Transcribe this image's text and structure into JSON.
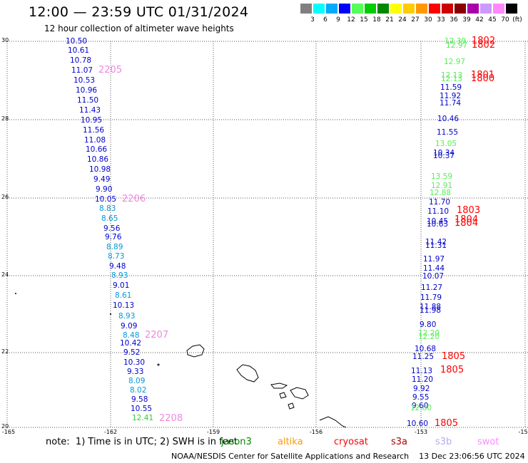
{
  "title": "12:00 — 23:59 UTC 01/31/2024",
  "subtitle": "12 hour collection of altimeter wave heights",
  "scale": {
    "colors": [
      "#808080",
      "#00ffff",
      "#00aaff",
      "#0000ff",
      "#55ff55",
      "#00cc00",
      "#008800",
      "#ffff00",
      "#ffcc00",
      "#ff9900",
      "#ff0000",
      "#cc0000",
      "#880000",
      "#aa00aa",
      "#cc99ff",
      "#ff88ff",
      "#000000"
    ],
    "labels": [
      "3",
      "6",
      "9",
      "12",
      "15",
      "18",
      "21",
      "24",
      "27",
      "30",
      "33",
      "36",
      "39",
      "42",
      "45",
      "70"
    ],
    "unit": "(ft)"
  },
  "lat_labels": [
    "30",
    "28",
    "26",
    "24",
    "22",
    "20"
  ],
  "lon_labels": [
    "-165",
    "-162",
    "-159",
    "-156",
    "-153",
    "-15"
  ],
  "wave_values": [
    {
      "t": "10.50",
      "c": "#0000cc"
    },
    {
      "t": "10.61",
      "c": "#0000cc"
    },
    {
      "t": "10.78",
      "c": "#0000cc"
    },
    {
      "t": "11.07",
      "c": "#0000cc"
    },
    {
      "t": "10.53",
      "c": "#0000cc"
    },
    {
      "t": "10.96",
      "c": "#0000cc"
    },
    {
      "t": "11.50",
      "c": "#0000cc"
    },
    {
      "t": "11.43",
      "c": "#0000cc"
    },
    {
      "t": "10.95",
      "c": "#0000cc"
    },
    {
      "t": "11.56",
      "c": "#0000cc"
    },
    {
      "t": "11.08",
      "c": "#0000cc"
    },
    {
      "t": "10.66",
      "c": "#0000cc"
    },
    {
      "t": "10.86",
      "c": "#0000cc"
    },
    {
      "t": "10.98",
      "c": "#0000cc"
    },
    {
      "t": "9.49",
      "c": "#0000cc"
    },
    {
      "t": "9.90",
      "c": "#0000cc"
    },
    {
      "t": "10.05",
      "c": "#0000cc"
    },
    {
      "t": "8.83",
      "c": "#0099dd"
    },
    {
      "t": "8.65",
      "c": "#0099dd"
    },
    {
      "t": "9.56",
      "c": "#0000cc"
    },
    {
      "t": "9.76",
      "c": "#0000cc"
    },
    {
      "t": "8.89",
      "c": "#0099dd"
    },
    {
      "t": "8.73",
      "c": "#0099dd"
    },
    {
      "t": "9.48",
      "c": "#0000cc"
    },
    {
      "t": "8.93",
      "c": "#0099dd"
    },
    {
      "t": "9.01",
      "c": "#0000cc"
    },
    {
      "t": "8.61",
      "c": "#0099dd"
    },
    {
      "t": "10.13",
      "c": "#0000cc"
    },
    {
      "t": "8.93",
      "c": "#0099dd"
    },
    {
      "t": "9.09",
      "c": "#0000cc"
    },
    {
      "t": "8.48",
      "c": "#0099dd"
    },
    {
      "t": "10.42",
      "c": "#0000cc"
    },
    {
      "t": "9.52",
      "c": "#0000cc"
    },
    {
      "t": "10.30",
      "c": "#0000cc"
    },
    {
      "t": "9.33",
      "c": "#0000cc"
    },
    {
      "t": "8.09",
      "c": "#0099dd"
    },
    {
      "t": "8.02",
      "c": "#0099dd"
    },
    {
      "t": "9.58",
      "c": "#0000cc"
    },
    {
      "t": "10.55",
      "c": "#0000cc"
    },
    {
      "t": "12.41",
      "c": "#33cc33"
    },
    {
      "t": "12.39",
      "c": "#55ee55"
    },
    {
      "t": "12.97",
      "c": "#55ee55"
    },
    {
      "t": "12.97",
      "c": "#55ee55"
    },
    {
      "t": "12.13",
      "c": "#55ee55"
    },
    {
      "t": "12.13",
      "c": "#55ee55"
    },
    {
      "t": "11.59",
      "c": "#0000cc"
    },
    {
      "t": "11.92",
      "c": "#0000cc"
    },
    {
      "t": "11.74",
      "c": "#0000cc"
    },
    {
      "t": "10.46",
      "c": "#0000cc"
    },
    {
      "t": "11.55",
      "c": "#0000cc"
    },
    {
      "t": "13.05",
      "c": "#55ee55"
    },
    {
      "t": "10.34",
      "c": "#0000cc"
    },
    {
      "t": "10.37",
      "c": "#0000cc"
    },
    {
      "t": "13.59",
      "c": "#55ee55"
    },
    {
      "t": "12.91",
      "c": "#55ee55"
    },
    {
      "t": "12.88",
      "c": "#55ee55"
    },
    {
      "t": "11.70",
      "c": "#0000cc"
    },
    {
      "t": "11.10",
      "c": "#0000cc"
    },
    {
      "t": "10.45",
      "c": "#0000cc"
    },
    {
      "t": "10.63",
      "c": "#0000cc"
    },
    {
      "t": "11.42",
      "c": "#0000cc"
    },
    {
      "t": "11.31",
      "c": "#0000cc"
    },
    {
      "t": "11.97",
      "c": "#0000cc"
    },
    {
      "t": "11.44",
      "c": "#0000cc"
    },
    {
      "t": "10.07",
      "c": "#0000cc"
    },
    {
      "t": "11.27",
      "c": "#0000cc"
    },
    {
      "t": "11.79",
      "c": "#0000cc"
    },
    {
      "t": "11.88",
      "c": "#0000cc"
    },
    {
      "t": "11.98",
      "c": "#0000cc"
    },
    {
      "t": "9.80",
      "c": "#0000cc"
    },
    {
      "t": "12.20",
      "c": "#55ee55"
    },
    {
      "t": "12.20",
      "c": "#55ee55"
    },
    {
      "t": "10.68",
      "c": "#0000cc"
    },
    {
      "t": "11.25",
      "c": "#0000cc"
    },
    {
      "t": "11.13",
      "c": "#0000cc"
    },
    {
      "t": "11.20",
      "c": "#0000cc"
    },
    {
      "t": "9.92",
      "c": "#0000cc"
    },
    {
      "t": "9.55",
      "c": "#0000cc"
    },
    {
      "t": "9.60",
      "c": "#0000cc"
    },
    {
      "t": "12.80",
      "c": "#55ee55"
    },
    {
      "t": "10.60",
      "c": "#0000cc"
    }
  ],
  "time_tags": [
    {
      "t": "2205",
      "c": "#ee88dd"
    },
    {
      "t": "2206",
      "c": "#ee88dd"
    },
    {
      "t": "2207",
      "c": "#ee88dd"
    },
    {
      "t": "2208",
      "c": "#ee88dd"
    },
    {
      "t": "1802",
      "c": "#ff0000"
    },
    {
      "t": "1802",
      "c": "#ff0000"
    },
    {
      "t": "1801",
      "c": "#ff0000"
    },
    {
      "t": "1800",
      "c": "#ff0000"
    },
    {
      "t": "1803",
      "c": "#ff0000"
    },
    {
      "t": "1804",
      "c": "#ff0000"
    },
    {
      "t": "1804",
      "c": "#ff0000"
    },
    {
      "t": "1805",
      "c": "#ff0000"
    },
    {
      "t": "1805",
      "c": "#ff0000"
    },
    {
      "t": "1805",
      "c": "#ff0000"
    }
  ],
  "footer": {
    "note": "note:  1) Time is in UTC; 2) SWH is in feet",
    "satellites": [
      {
        "name": "jason3",
        "c": "#008800"
      },
      {
        "name": "altika",
        "c": "#ff9900"
      },
      {
        "name": "cryosat",
        "c": "#ff0000"
      },
      {
        "name": "s3a",
        "c": "#aa0000"
      },
      {
        "name": "s3b",
        "c": "#bbaaee"
      },
      {
        "name": "swot",
        "c": "#ff88ff"
      }
    ],
    "credit": "NOAA/NESDIS Center for Satellite Applications and Research    13 Dec 23:06:56 UTC 2024"
  }
}
